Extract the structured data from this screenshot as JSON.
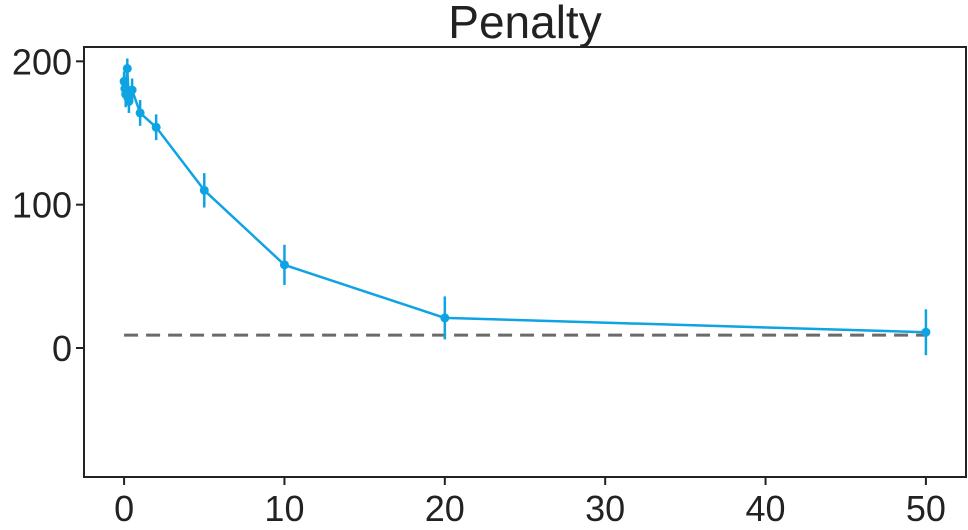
{
  "chart_data": {
    "type": "line",
    "title": "Penalty",
    "xlabel": "",
    "ylabel": "",
    "xlim": [
      -2.5,
      52.5
    ],
    "ylim": [
      -90,
      210
    ],
    "x_ticks": [
      0,
      10,
      20,
      30,
      40,
      50
    ],
    "y_ticks": [
      0,
      100,
      200
    ],
    "grid": false,
    "colors": {
      "series": "#0ea3e3",
      "reference": "#6b6b6b",
      "axis": "#222222"
    },
    "series": [
      {
        "x": [
          0,
          0.05,
          0.1,
          0.2,
          0.3,
          0.5,
          1,
          2,
          5,
          10,
          20,
          50
        ],
        "y": [
          186,
          181,
          177,
          195,
          172,
          180,
          164,
          154,
          110,
          58,
          21,
          11
        ],
        "error": [
          7,
          8,
          9,
          7,
          8,
          8,
          9,
          9,
          12,
          14,
          15,
          16
        ]
      }
    ],
    "reference_line": {
      "y": 9,
      "x_range": [
        0,
        50
      ],
      "style": "dashed"
    }
  }
}
